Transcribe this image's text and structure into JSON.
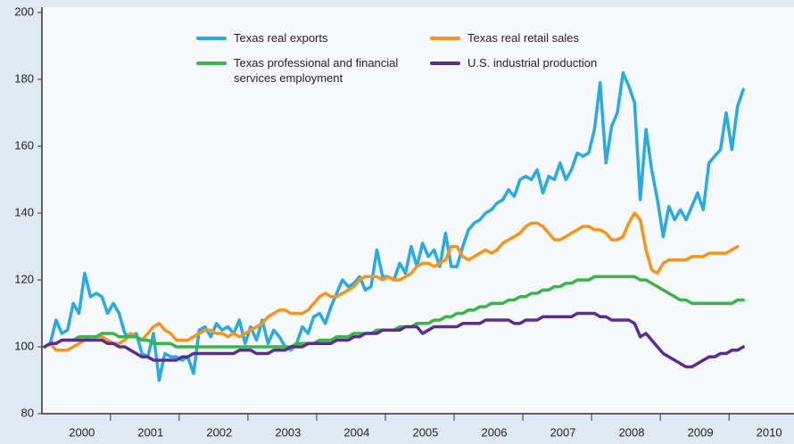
{
  "chart_data": {
    "type": "line",
    "categories": [
      null,
      null,
      null,
      null,
      null,
      null,
      "2000",
      null,
      null,
      null,
      null,
      null,
      null,
      null,
      null,
      null,
      null,
      null,
      "2001",
      null,
      null,
      null,
      null,
      null,
      null,
      null,
      null,
      null,
      null,
      null,
      "2002",
      null,
      null,
      null,
      null,
      null,
      null,
      null,
      null,
      null,
      null,
      null,
      "2003",
      null,
      null,
      null,
      null,
      null,
      null,
      null,
      null,
      null,
      null,
      null,
      "2004",
      null,
      null,
      null,
      null,
      null,
      null,
      null,
      null,
      null,
      null,
      null,
      "2005",
      null,
      null,
      null,
      null,
      null,
      null,
      null,
      null,
      null,
      null,
      null,
      "2006",
      null,
      null,
      null,
      null,
      null,
      null,
      null,
      null,
      null,
      null,
      null,
      "2007",
      null,
      null,
      null,
      null,
      null,
      null,
      null,
      null,
      null,
      null,
      null,
      "2008",
      null,
      null,
      null,
      null,
      null,
      null,
      null,
      null,
      null,
      null,
      null,
      "2009",
      null,
      null,
      null,
      null,
      null,
      null,
      null,
      null,
      null,
      null,
      null,
      "2010"
    ],
    "ylim": [
      80,
      200
    ],
    "yticks": [
      80,
      100,
      120,
      140,
      160,
      180,
      200
    ],
    "series": [
      {
        "name": "Texas real exports",
        "color": "#29abe2",
        "values": [
          100,
          101,
          108,
          104,
          105,
          113,
          110,
          122,
          115,
          116,
          115,
          110,
          113,
          110,
          104,
          103,
          104,
          98,
          97,
          104,
          90,
          98,
          97,
          97,
          96,
          97,
          92,
          105,
          106,
          103,
          107,
          105,
          106,
          104,
          108,
          101,
          106,
          102,
          108,
          101,
          105,
          103,
          100,
          99,
          101,
          106,
          104,
          109,
          110,
          107,
          112,
          116,
          120,
          118,
          119,
          121,
          117,
          118,
          129,
          121,
          121,
          120,
          125,
          122,
          130,
          124,
          131,
          127,
          129,
          124,
          134,
          124,
          124,
          130,
          135,
          137,
          138,
          140,
          141,
          143,
          144,
          147,
          145,
          150,
          151,
          150,
          153,
          146,
          151,
          150,
          155,
          150,
          153,
          158,
          157,
          158,
          165,
          179,
          155,
          166,
          170,
          182,
          178,
          173,
          144,
          165,
          153,
          144,
          133,
          142,
          138,
          141,
          138,
          142,
          146,
          141,
          155,
          157,
          159,
          170,
          159,
          172,
          177,
          null,
          null,
          null,
          null
        ]
      },
      {
        "name": "Texas real retail sales",
        "color": "#f7941d",
        "values": [
          100,
          101,
          99,
          99,
          99,
          100,
          101,
          102,
          103,
          103,
          103,
          102,
          101,
          101,
          102,
          104,
          103,
          102,
          104,
          106,
          107,
          105,
          104,
          102,
          102,
          102,
          103,
          104,
          105,
          105,
          104,
          104,
          103,
          104,
          103,
          104,
          105,
          106,
          107,
          109,
          110,
          111,
          111,
          110,
          110,
          110,
          111,
          113,
          115,
          116,
          115,
          115,
          116,
          117,
          118,
          120,
          121,
          121,
          121,
          120,
          121,
          120,
          120,
          121,
          122,
          124,
          125,
          125,
          124,
          125,
          126,
          130,
          130,
          127,
          126,
          127,
          128,
          129,
          128,
          129,
          131,
          132,
          133,
          134,
          136,
          137,
          137,
          136,
          134,
          132,
          132,
          133,
          134,
          135,
          136,
          136,
          135,
          135,
          134,
          132,
          132,
          133,
          137,
          140,
          138,
          129,
          123,
          122,
          125,
          126,
          126,
          126,
          126,
          127,
          127,
          127,
          128,
          128,
          128,
          128,
          129,
          130,
          null,
          null,
          null,
          null,
          null
        ]
      },
      {
        "name": "Texas professional and financial services employment",
        "color": "#39b54a",
        "values": [
          100,
          101,
          101,
          102,
          102,
          102,
          103,
          103,
          103,
          103,
          104,
          104,
          104,
          103,
          103,
          103,
          103,
          102,
          102,
          101,
          101,
          101,
          101,
          100,
          100,
          100,
          100,
          100,
          100,
          100,
          100,
          100,
          100,
          100,
          100,
          100,
          100,
          100,
          100,
          100,
          100,
          100,
          100,
          100,
          101,
          101,
          101,
          101,
          102,
          102,
          102,
          103,
          103,
          103,
          104,
          104,
          104,
          104,
          105,
          105,
          105,
          105,
          106,
          106,
          106,
          107,
          107,
          107,
          108,
          108,
          109,
          109,
          110,
          110,
          111,
          111,
          112,
          112,
          113,
          113,
          113,
          114,
          114,
          115,
          115,
          116,
          116,
          117,
          117,
          118,
          118,
          119,
          119,
          120,
          120,
          120,
          121,
          121,
          121,
          121,
          121,
          121,
          121,
          121,
          120,
          120,
          119,
          118,
          117,
          116,
          115,
          114,
          114,
          113,
          113,
          113,
          113,
          113,
          113,
          113,
          113,
          114,
          114,
          null,
          null,
          null,
          null
        ]
      },
      {
        "name": "U.S. industrial production",
        "color": "#5c2d91",
        "values": [
          100,
          101,
          101,
          102,
          102,
          102,
          102,
          102,
          102,
          102,
          102,
          101,
          101,
          100,
          100,
          99,
          98,
          97,
          97,
          96,
          96,
          96,
          96,
          96,
          97,
          97,
          98,
          98,
          98,
          98,
          98,
          98,
          98,
          98,
          99,
          99,
          99,
          98,
          98,
          98,
          99,
          99,
          99,
          100,
          100,
          100,
          101,
          101,
          101,
          101,
          101,
          102,
          102,
          102,
          103,
          103,
          104,
          104,
          104,
          105,
          105,
          105,
          105,
          106,
          106,
          106,
          104,
          105,
          106,
          106,
          106,
          106,
          106,
          107,
          107,
          107,
          107,
          108,
          108,
          108,
          108,
          108,
          107,
          107,
          108,
          108,
          108,
          109,
          109,
          109,
          109,
          109,
          109,
          110,
          110,
          110,
          110,
          109,
          109,
          108,
          108,
          108,
          108,
          107,
          103,
          104,
          102,
          100,
          98,
          97,
          96,
          95,
          94,
          94,
          95,
          96,
          97,
          97,
          98,
          98,
          99,
          99,
          100,
          null,
          null,
          null,
          null
        ]
      }
    ]
  }
}
